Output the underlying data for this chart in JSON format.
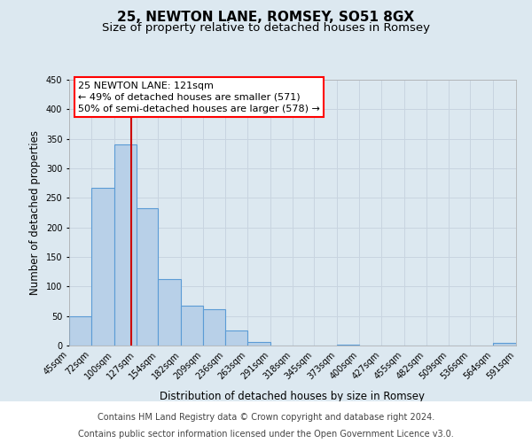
{
  "title": "25, NEWTON LANE, ROMSEY, SO51 8GX",
  "subtitle": "Size of property relative to detached houses in Romsey",
  "xlabel": "Distribution of detached houses by size in Romsey",
  "ylabel": "Number of detached properties",
  "bar_left_edges": [
    45,
    72,
    100,
    127,
    154,
    182,
    209,
    236,
    263,
    291,
    318,
    345,
    373,
    400,
    427,
    455,
    482,
    509,
    536,
    564
  ],
  "bar_heights": [
    50,
    267,
    340,
    232,
    113,
    68,
    61,
    25,
    6,
    0,
    0,
    0,
    2,
    0,
    0,
    0,
    0,
    0,
    0,
    5
  ],
  "tick_labels": [
    "45sqm",
    "72sqm",
    "100sqm",
    "127sqm",
    "154sqm",
    "182sqm",
    "209sqm",
    "236sqm",
    "263sqm",
    "291sqm",
    "318sqm",
    "345sqm",
    "373sqm",
    "400sqm",
    "427sqm",
    "455sqm",
    "482sqm",
    "509sqm",
    "536sqm",
    "564sqm",
    "591sqm"
  ],
  "bar_color": "#b8d0e8",
  "bar_edge_color": "#5b9bd5",
  "property_line_x": 121,
  "property_line_color": "#cc0000",
  "annotation_line1": "25 NEWTON LANE: 121sqm",
  "annotation_line2": "← 49% of detached houses are smaller (571)",
  "annotation_line3": "50% of semi-detached houses are larger (578) →",
  "ylim": [
    0,
    450
  ],
  "yticks": [
    0,
    50,
    100,
    150,
    200,
    250,
    300,
    350,
    400,
    450
  ],
  "grid_color": "#c8d4e0",
  "bg_color": "#dce8f0",
  "plot_bg_color": "#dce8f0",
  "footer_bg": "#ffffff",
  "footer_line1": "Contains HM Land Registry data © Crown copyright and database right 2024.",
  "footer_line2": "Contains public sector information licensed under the Open Government Licence v3.0.",
  "title_fontsize": 11,
  "subtitle_fontsize": 9.5,
  "axis_label_fontsize": 8.5,
  "tick_fontsize": 7,
  "annotation_fontsize": 8,
  "footer_fontsize": 7
}
